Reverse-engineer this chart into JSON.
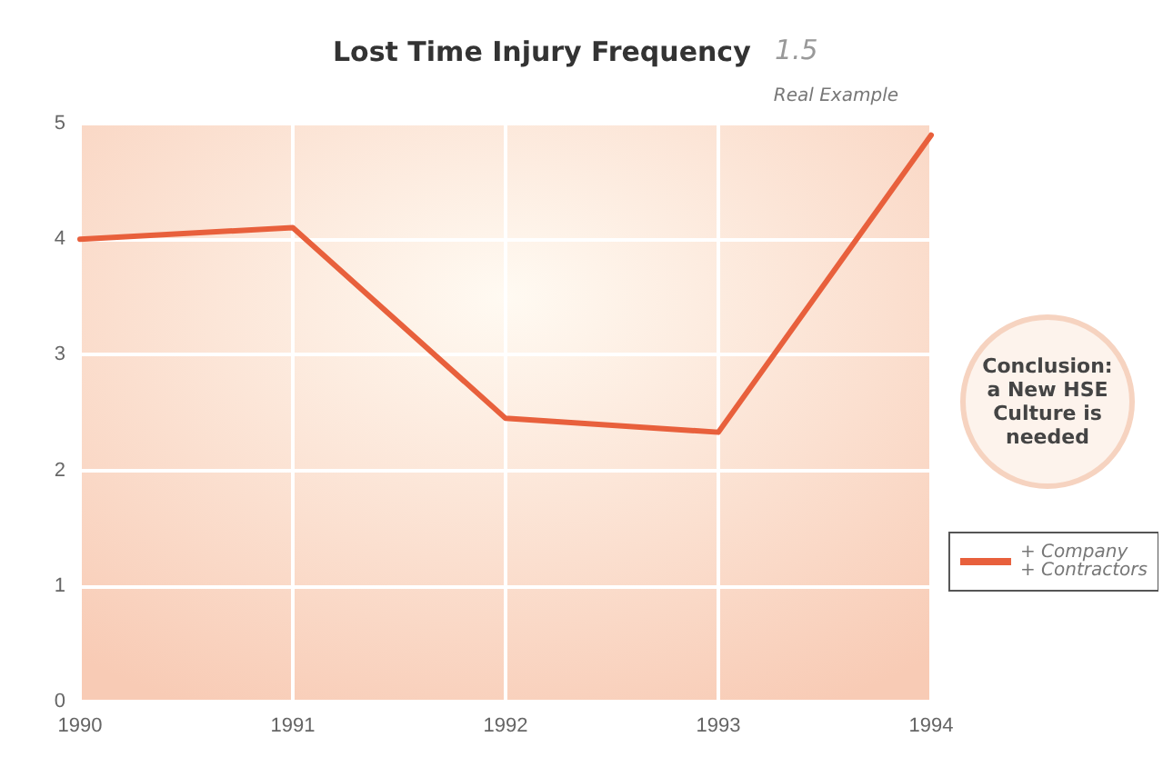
{
  "chart_data": {
    "type": "line",
    "title": "Lost Time Injury Frequency",
    "annotations": [
      "1.5",
      "Real Example",
      "Conclusion: a New HSE Culture is needed"
    ],
    "x": [
      1990,
      1991,
      1992,
      1993,
      1994
    ],
    "series": [
      {
        "name": "+ Company\n+ Contractors",
        "color": "#e8603c",
        "values": [
          4.0,
          4.1,
          2.45,
          2.33,
          4.9
        ]
      }
    ],
    "xlim": [
      1990,
      1994
    ],
    "xticks": [
      1990,
      1991,
      1992,
      1993,
      1994
    ],
    "ylim": [
      0,
      5
    ],
    "yticks": [
      0,
      1,
      2,
      3,
      4,
      5
    ],
    "grid": true,
    "legend": "right",
    "marker": "none",
    "line_style": "solid"
  }
}
